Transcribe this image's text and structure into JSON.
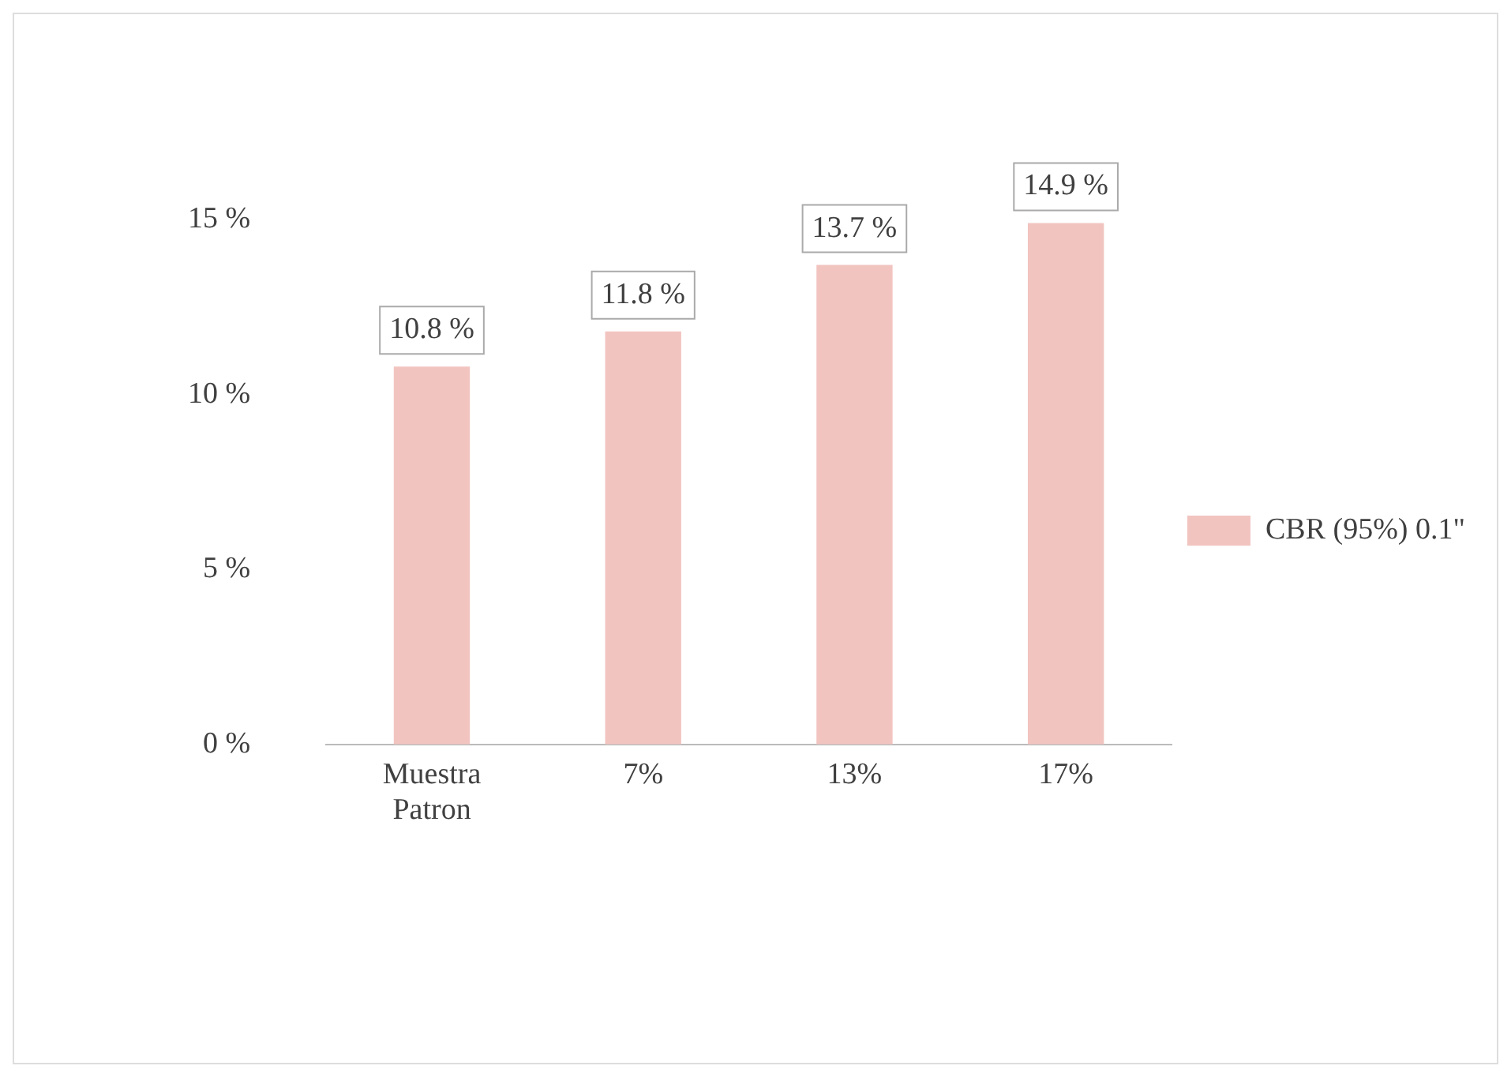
{
  "chart_data": {
    "type": "bar",
    "categories": [
      "Muestra Patron",
      "7%",
      "13%",
      "17%"
    ],
    "series": [
      {
        "name": "CBR (95%) 0.1\"",
        "color": "#f2c4c0",
        "values": [
          10.8,
          11.8,
          13.7,
          14.9
        ],
        "value_labels": [
          "10.8 %",
          "11.8 %",
          "13.7 %",
          "14.9 %"
        ]
      }
    ],
    "ylim": [
      0,
      15
    ],
    "yticks": [
      {
        "value": 0,
        "label": "0 %"
      },
      {
        "value": 5,
        "label": "5 %"
      },
      {
        "value": 10,
        "label": "10 %"
      },
      {
        "value": 15,
        "label": "15 %"
      }
    ],
    "grid": false,
    "legend": "right"
  }
}
